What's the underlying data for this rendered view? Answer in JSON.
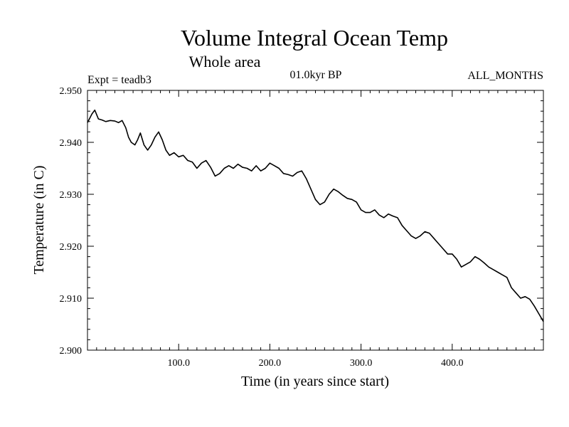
{
  "chart_data": {
    "type": "line",
    "title": "Volume Integral Ocean Temp",
    "subtitle": "Whole area",
    "experiment_label": "Expt = teadb3",
    "period_label": "01.0kyr BP",
    "months_label": "ALL_MONTHS",
    "xlabel": "Time (in years since start)",
    "ylabel": "Temperature (in C)",
    "xlim": [
      0,
      500
    ],
    "ylim": [
      2.9,
      2.95
    ],
    "x_ticks": [
      {
        "value": 100,
        "label": "100.0"
      },
      {
        "value": 200,
        "label": "200.0"
      },
      {
        "value": 300,
        "label": "300.0"
      },
      {
        "value": 400,
        "label": "400.0"
      }
    ],
    "y_ticks": [
      {
        "value": 2.9,
        "label": "2.900"
      },
      {
        "value": 2.91,
        "label": "2.910"
      },
      {
        "value": 2.92,
        "label": "2.920"
      },
      {
        "value": 2.93,
        "label": "2.930"
      },
      {
        "value": 2.94,
        "label": "2.940"
      },
      {
        "value": 2.95,
        "label": "2.950"
      }
    ],
    "grid": false,
    "series": [
      {
        "name": "Volume integral ocean temperature",
        "color": "#000000",
        "x": [
          0,
          5,
          8,
          12,
          16,
          20,
          25,
          30,
          34,
          38,
          42,
          45,
          48,
          52,
          55,
          58,
          62,
          66,
          70,
          74,
          78,
          82,
          86,
          90,
          95,
          100,
          105,
          110,
          115,
          120,
          125,
          130,
          135,
          140,
          145,
          150,
          155,
          160,
          165,
          170,
          175,
          180,
          185,
          190,
          195,
          200,
          205,
          210,
          215,
          220,
          225,
          230,
          235,
          240,
          245,
          250,
          255,
          260,
          265,
          270,
          275,
          280,
          285,
          290,
          295,
          300,
          305,
          310,
          315,
          320,
          325,
          330,
          335,
          340,
          345,
          350,
          355,
          360,
          365,
          370,
          375,
          380,
          385,
          390,
          395,
          400,
          405,
          410,
          415,
          420,
          425,
          430,
          435,
          440,
          445,
          450,
          455,
          460,
          465,
          470,
          475,
          480,
          485,
          490,
          495,
          500
        ],
        "values": [
          2.9438,
          2.9455,
          2.9462,
          2.9445,
          2.9443,
          2.944,
          2.9442,
          2.9441,
          2.9438,
          2.9442,
          2.9428,
          2.941,
          2.94,
          2.9395,
          2.9405,
          2.9418,
          2.9395,
          2.9385,
          2.9395,
          2.941,
          2.942,
          2.9405,
          2.9385,
          2.9375,
          2.938,
          2.9372,
          2.9375,
          2.9365,
          2.9362,
          2.935,
          2.936,
          2.9365,
          2.9352,
          2.9335,
          2.934,
          2.935,
          2.9355,
          2.935,
          2.9358,
          2.9352,
          2.935,
          2.9345,
          2.9355,
          2.9345,
          2.935,
          2.936,
          2.9355,
          2.935,
          2.934,
          2.9338,
          2.9335,
          2.9342,
          2.9345,
          2.933,
          2.931,
          2.929,
          2.928,
          2.9285,
          2.93,
          2.931,
          2.9305,
          2.9298,
          2.9292,
          2.929,
          2.9285,
          2.927,
          2.9265,
          2.9265,
          2.927,
          2.926,
          2.9255,
          2.9262,
          2.9258,
          2.9255,
          2.924,
          2.923,
          2.922,
          2.9215,
          2.922,
          2.9228,
          2.9225,
          2.9215,
          2.9205,
          2.9195,
          2.9185,
          2.9185,
          2.9175,
          2.916,
          2.9165,
          2.917,
          2.918,
          2.9175,
          2.9168,
          2.916,
          2.9155,
          2.915,
          2.9145,
          2.914,
          2.912,
          2.911,
          2.91,
          2.9103,
          2.9098,
          2.9085,
          2.907,
          2.9055
        ]
      }
    ]
  }
}
